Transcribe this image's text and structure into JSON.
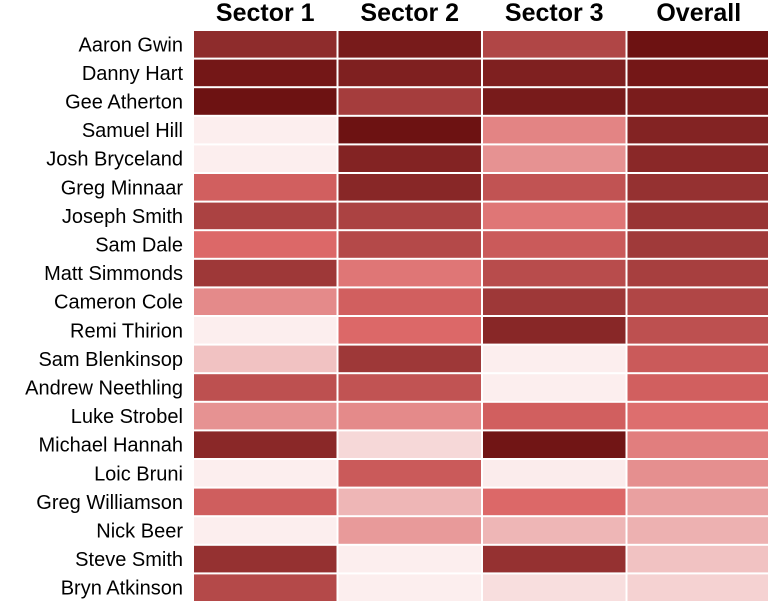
{
  "chart_data": {
    "type": "heatmap",
    "title": "",
    "xlabel": "",
    "ylabel": "",
    "columns": [
      "Sector 1",
      "Sector 2",
      "Sector 3",
      "Overall"
    ],
    "rows": [
      "Aaron Gwin",
      "Danny Hart",
      "Gee Atherton",
      "Samuel Hill",
      "Josh Bryceland",
      "Greg Minnaar",
      "Joseph Smith",
      "Sam Dale",
      "Matt Simmonds",
      "Cameron Cole",
      "Remi Thirion",
      "Sam Blenkinsop",
      "Andrew Neethling",
      "Luke Strobel",
      "Michael Hannah",
      "Loic Bruni",
      "Greg Williamson",
      "Nick Beer",
      "Steve Smith",
      "Bryn Atkinson"
    ],
    "values": [
      [
        0.85,
        0.95,
        0.7,
        1.0
      ],
      [
        0.97,
        0.92,
        0.92,
        0.97
      ],
      [
        1.0,
        0.75,
        0.95,
        0.94
      ],
      [
        0.02,
        1.0,
        0.4,
        0.9
      ],
      [
        0.02,
        0.9,
        0.35,
        0.87
      ],
      [
        0.55,
        0.88,
        0.62,
        0.82
      ],
      [
        0.72,
        0.72,
        0.45,
        0.8
      ],
      [
        0.5,
        0.68,
        0.58,
        0.77
      ],
      [
        0.78,
        0.45,
        0.66,
        0.74
      ],
      [
        0.38,
        0.55,
        0.78,
        0.7
      ],
      [
        0.02,
        0.5,
        0.88,
        0.64
      ],
      [
        0.18,
        0.78,
        0.02,
        0.58
      ],
      [
        0.64,
        0.62,
        0.02,
        0.55
      ],
      [
        0.35,
        0.38,
        0.55,
        0.48
      ],
      [
        0.87,
        0.1,
        0.98,
        0.42
      ],
      [
        0.02,
        0.58,
        0.03,
        0.36
      ],
      [
        0.56,
        0.22,
        0.5,
        0.3
      ],
      [
        0.02,
        0.32,
        0.22,
        0.24
      ],
      [
        0.82,
        0.02,
        0.82,
        0.18
      ],
      [
        0.68,
        0.02,
        0.08,
        0.12
      ]
    ],
    "color_scale": {
      "low": "#fdf4f4",
      "mid": "#dc6868",
      "high": "#6d1212"
    },
    "grid_lines": "white"
  }
}
